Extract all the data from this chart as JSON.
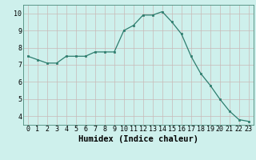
{
  "x": [
    0,
    1,
    2,
    3,
    4,
    5,
    6,
    7,
    8,
    9,
    10,
    11,
    12,
    13,
    14,
    15,
    16,
    17,
    18,
    19,
    20,
    21,
    22,
    23
  ],
  "y": [
    7.5,
    7.3,
    7.1,
    7.1,
    7.5,
    7.5,
    7.5,
    7.75,
    7.75,
    7.75,
    9.0,
    9.3,
    9.9,
    9.9,
    10.1,
    9.5,
    8.8,
    7.5,
    6.5,
    5.8,
    5.0,
    4.3,
    3.8,
    3.7
  ],
  "line_color": "#2d7d6e",
  "marker": "s",
  "marker_size": 2.0,
  "bg_color": "#cef0ec",
  "grid_color": "#c8b8b8",
  "xlabel": "Humidex (Indice chaleur)",
  "xlabel_fontsize": 7.5,
  "tick_fontsize": 6.0,
  "xlim": [
    -0.5,
    23.5
  ],
  "ylim": [
    3.5,
    10.5
  ],
  "yticks": [
    4,
    5,
    6,
    7,
    8,
    9,
    10
  ],
  "xticks": [
    0,
    1,
    2,
    3,
    4,
    5,
    6,
    7,
    8,
    9,
    10,
    11,
    12,
    13,
    14,
    15,
    16,
    17,
    18,
    19,
    20,
    21,
    22,
    23
  ]
}
